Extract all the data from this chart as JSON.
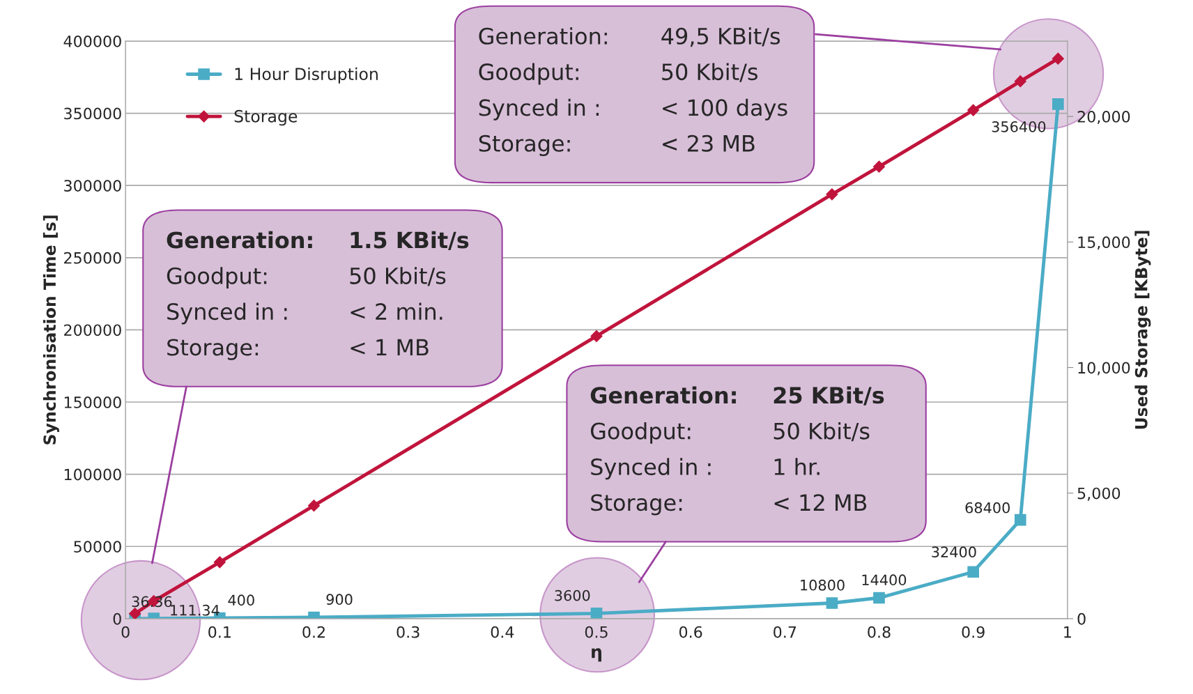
{
  "chart_data": {
    "type": "line",
    "xlabel": "η",
    "ylabel": "Synchronisation Time [s]",
    "y2label": "Used Storage [KByte]",
    "x": [
      0.01,
      0.03,
      0.1,
      0.2,
      0.5,
      0.75,
      0.8,
      0.9,
      0.95,
      0.99
    ],
    "series": [
      {
        "name": "1 Hour Disruption",
        "color": "#4bacc6",
        "marker": "square",
        "data_labels": true,
        "values": [
          36.36,
          111.34,
          400,
          900,
          3600,
          10800,
          14400,
          32400,
          68400,
          356400
        ]
      },
      {
        "name": "Storage",
        "color": "#c0143c",
        "marker": "diamond",
        "axis": "y2",
        "values": [
          200,
          700,
          2250,
          4500,
          11250,
          16900,
          18000,
          20250,
          21400,
          22300
        ]
      }
    ],
    "xlim": [
      0,
      1
    ],
    "xticks": [
      0,
      0.1,
      0.2,
      0.3,
      0.4,
      0.5,
      0.6,
      0.7,
      0.8,
      0.9,
      1
    ],
    "ylim": [
      0,
      400000
    ],
    "yticks": [
      0,
      50000,
      100000,
      150000,
      200000,
      250000,
      300000,
      350000,
      400000
    ],
    "y2lim": [
      0,
      23000
    ],
    "y2ticks": [
      0,
      {
        "value": 5000,
        "label": "5,000"
      },
      {
        "value": 10000,
        "label": "10,000"
      },
      {
        "value": 15000,
        "label": "15,000"
      },
      {
        "value": 20000,
        "label": "20,000"
      }
    ],
    "grid": "y",
    "legend": "top left",
    "line_style": "solid",
    "annotations": [
      "Generation:",
      "49,5 KBit/s",
      "Goodput:",
      "50 Kbit/s",
      "Synced in :",
      "< 100 days",
      "Storage:",
      "< 23 MB",
      "Generation:",
      "1.5 KBit/s",
      "Goodput:",
      "50 Kbit/s",
      "Synced in :",
      "< 2 min.",
      "Storage:",
      "< 1 MB",
      "Generation:",
      "25 KBit/s",
      "Goodput:",
      "50 Kbit/s",
      "Synced in :",
      "1 hr.",
      "Storage:",
      "< 12 MB"
    ]
  }
}
